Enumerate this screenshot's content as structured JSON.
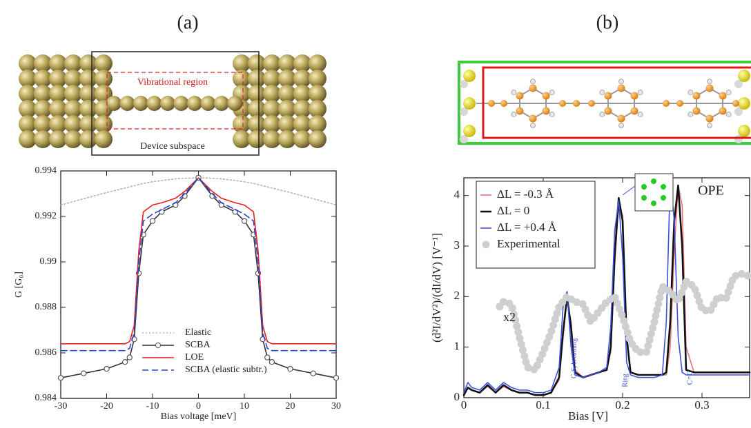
{
  "panel_labels": [
    "(a)",
    "(b)"
  ],
  "structure_labels": {
    "vibrational_region": "Vibrational region",
    "device_subspace": "Device subspace"
  },
  "chart_data": [
    {
      "type": "line",
      "xlabel": "Bias voltage [meV]",
      "ylabel": "G [G₀]",
      "xlim": [
        -30,
        30
      ],
      "ylim": [
        0.984,
        0.994
      ],
      "xticks": [
        -30,
        -20,
        -10,
        0,
        10,
        20,
        30
      ],
      "yticks": [
        0.984,
        0.986,
        0.988,
        0.99,
        0.992,
        0.994
      ],
      "legend": "lower center",
      "x": [
        -30,
        -25,
        -20,
        -16,
        -15,
        -14,
        -13,
        -12,
        -10,
        -8,
        -5,
        -3,
        0,
        3,
        5,
        8,
        10,
        12,
        13,
        14,
        15,
        16,
        20,
        25,
        30
      ],
      "series": [
        {
          "name": "Elastic",
          "color": "#b4b4b4",
          "style": "dotted",
          "values": [
            0.9925,
            0.99278,
            0.99305,
            0.99325,
            0.9933,
            0.99335,
            0.9934,
            0.99345,
            0.99352,
            0.99358,
            0.99365,
            0.99368,
            0.9937,
            0.99368,
            0.99365,
            0.99358,
            0.99352,
            0.99345,
            0.9934,
            0.99335,
            0.9933,
            0.99325,
            0.99305,
            0.99278,
            0.9925
          ]
        },
        {
          "name": "SCBA",
          "color": "#333333",
          "style": "solid",
          "marker": "circle",
          "values": [
            0.9849,
            0.9851,
            0.9853,
            0.9856,
            0.9858,
            0.9866,
            0.9895,
            0.9912,
            0.9918,
            0.9922,
            0.9925,
            0.9929,
            0.9937,
            0.9929,
            0.9925,
            0.9922,
            0.9918,
            0.9912,
            0.9895,
            0.9866,
            0.9858,
            0.9856,
            0.9853,
            0.9851,
            0.9849
          ]
        },
        {
          "name": "LOE",
          "color": "#e8201c",
          "style": "solid",
          "values": [
            0.9864,
            0.9864,
            0.9864,
            0.9864,
            0.9865,
            0.9872,
            0.9905,
            0.9922,
            0.9925,
            0.9926,
            0.9928,
            0.9931,
            0.9937,
            0.9931,
            0.9928,
            0.9926,
            0.9925,
            0.9922,
            0.9905,
            0.9872,
            0.9865,
            0.9864,
            0.9864,
            0.9864,
            0.9864
          ]
        },
        {
          "name": "SCBA (elastic subtr.)",
          "color": "#2a3fd8",
          "style": "dashed",
          "values": [
            0.9861,
            0.9861,
            0.9861,
            0.9861,
            0.9862,
            0.9869,
            0.99,
            0.9918,
            0.9921,
            0.9923,
            0.9926,
            0.993,
            0.9937,
            0.993,
            0.9926,
            0.9923,
            0.9921,
            0.9918,
            0.99,
            0.9869,
            0.9862,
            0.9861,
            0.9861,
            0.9861,
            0.9861
          ]
        }
      ]
    },
    {
      "type": "line",
      "xlabel": "Bias [V]",
      "ylabel": "(d²I/dV²)/(dI/dV) [V⁻¹]",
      "xlim": [
        0,
        0.36
      ],
      "ylim": [
        0,
        4.35
      ],
      "xticks": [
        0,
        0.1,
        0.2,
        0.3
      ],
      "yticks": [
        0,
        1,
        2,
        3,
        4
      ],
      "legend": "upper left",
      "annotations": [
        "OPE",
        "x2",
        "C-S, breathing",
        "Ring",
        "C=C"
      ],
      "x": [
        0,
        0.005,
        0.01,
        0.02,
        0.03,
        0.04,
        0.05,
        0.06,
        0.07,
        0.08,
        0.09,
        0.1,
        0.11,
        0.12,
        0.125,
        0.13,
        0.135,
        0.14,
        0.15,
        0.16,
        0.17,
        0.18,
        0.185,
        0.19,
        0.195,
        0.2,
        0.205,
        0.21,
        0.22,
        0.23,
        0.24,
        0.25,
        0.255,
        0.26,
        0.265,
        0.27,
        0.275,
        0.28,
        0.29,
        0.3,
        0.32,
        0.34,
        0.36
      ],
      "series": [
        {
          "name": "ΔL = -0.3 Å",
          "color": "#e5737a",
          "style": "solid",
          "values": [
            0.05,
            0.18,
            0.15,
            0.1,
            0.22,
            0.1,
            0.22,
            0.15,
            0.1,
            0.1,
            0.05,
            0.05,
            0.1,
            0.35,
            1.2,
            1.95,
            1.5,
            0.55,
            0.4,
            0.45,
            0.5,
            0.55,
            0.9,
            2.6,
            3.85,
            3.6,
            1.3,
            0.5,
            0.45,
            0.45,
            0.45,
            0.45,
            0.45,
            1.0,
            2.9,
            4.2,
            3.8,
            1.0,
            0.5,
            0.5,
            0.5,
            0.5,
            0.5
          ]
        },
        {
          "name": "ΔL = 0",
          "color": "#111111",
          "style": "bold",
          "values": [
            0.05,
            0.2,
            0.15,
            0.1,
            0.25,
            0.1,
            0.25,
            0.15,
            0.1,
            0.1,
            0.05,
            0.05,
            0.1,
            0.4,
            1.3,
            2.0,
            1.4,
            0.5,
            0.4,
            0.45,
            0.5,
            0.55,
            1.0,
            2.8,
            3.95,
            3.5,
            1.2,
            0.5,
            0.45,
            0.45,
            0.45,
            0.45,
            0.5,
            1.5,
            3.5,
            4.2,
            3.0,
            0.55,
            0.5,
            0.5,
            0.5,
            0.5,
            0.5
          ]
        },
        {
          "name": "ΔL = +0.4 Å",
          "color": "#3d4fe0",
          "style": "solid",
          "values": [
            0.1,
            0.3,
            0.2,
            0.15,
            0.3,
            0.15,
            0.3,
            0.2,
            0.15,
            0.15,
            0.1,
            0.1,
            0.15,
            0.6,
            1.8,
            2.1,
            1.0,
            0.45,
            0.4,
            0.45,
            0.5,
            0.6,
            1.4,
            3.3,
            3.9,
            2.8,
            0.7,
            0.45,
            0.4,
            0.4,
            0.4,
            0.45,
            1.5,
            4.35,
            3.5,
            1.2,
            0.5,
            0.45,
            0.45,
            0.45,
            0.45,
            0.45,
            0.45
          ]
        },
        {
          "name": "Experimental",
          "color": "#cfcfcf",
          "style": "dots",
          "x": [
            0.045,
            0.05,
            0.06,
            0.07,
            0.08,
            0.09,
            0.1,
            0.11,
            0.12,
            0.13,
            0.14,
            0.15,
            0.16,
            0.17,
            0.18,
            0.19,
            0.2,
            0.21,
            0.22,
            0.23,
            0.24,
            0.25,
            0.26,
            0.27,
            0.28,
            0.29,
            0.3,
            0.31,
            0.32,
            0.33,
            0.34,
            0.35,
            0.36
          ],
          "values": [
            1.8,
            1.9,
            1.85,
            1.2,
            0.6,
            0.55,
            0.9,
            1.3,
            1.8,
            2.0,
            1.9,
            1.85,
            1.5,
            1.7,
            1.9,
            2.0,
            1.6,
            1.1,
            0.9,
            0.9,
            1.5,
            2.2,
            2.1,
            1.9,
            2.3,
            2.2,
            1.75,
            1.7,
            2.0,
            1.95,
            2.4,
            2.45,
            2.4
          ]
        }
      ]
    }
  ]
}
